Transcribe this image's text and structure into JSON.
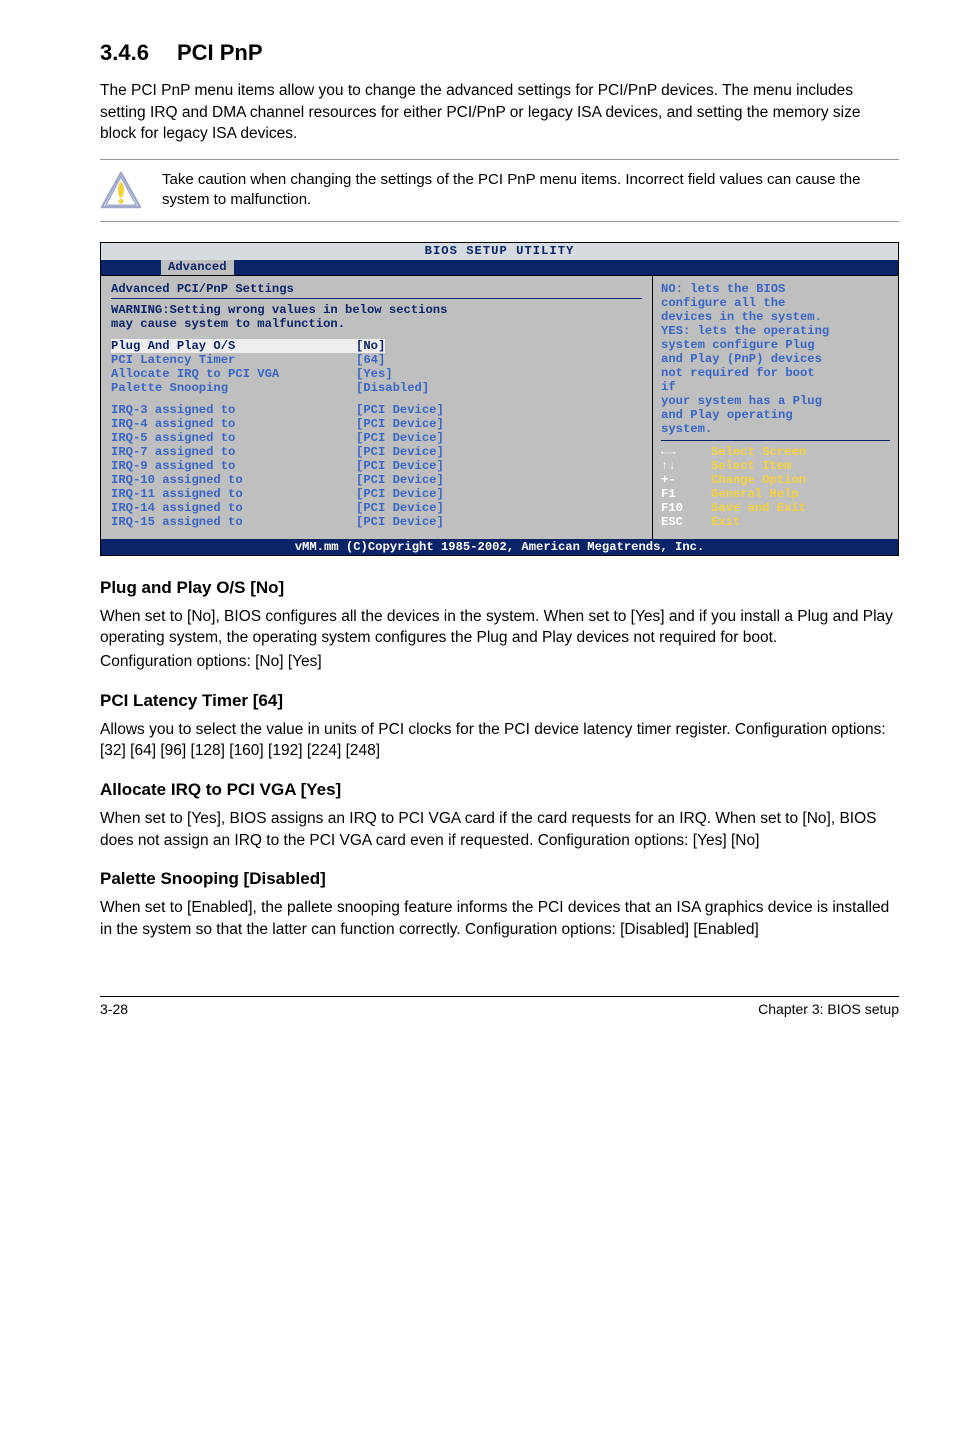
{
  "main": {
    "heading_num": "3.4.6",
    "heading_title": "PCI PnP",
    "intro": "The PCI PnP menu items allow you to change the advanced settings for PCI/PnP devices. The menu includes setting IRQ and DMA channel resources for either PCI/PnP or legacy ISA devices, and setting the memory size block for legacy ISA devices.",
    "caution": "Take caution when changing the settings of the PCI PnP menu items. Incorrect field values can cause the system to malfunction."
  },
  "bios": {
    "title": "BIOS SETUP UTILITY",
    "tab": "Advanced",
    "heading": "Advanced PCI/PnP Settings",
    "warning_label": "WARNING:",
    "warning_line1": "Setting wrong values in below sections",
    "warning_line2": "may cause system to malfunction.",
    "colors": {
      "screen_bg": "#bfbfbf",
      "frame_bg": "#0b2469",
      "heading_text": "#0b2469",
      "selected_bg": "#eeeeee",
      "selected_text": "#0b2469",
      "value_text": "#3866c6",
      "help_white": "#ffffff",
      "help_yellow": "#f5d23c"
    },
    "settings": [
      {
        "label": "Plug And Play O/S",
        "value": "[No]",
        "selected": true
      },
      {
        "label": "PCI Latency Timer",
        "value": "[64]",
        "selected": false
      },
      {
        "label": "Allocate IRQ to PCI VGA",
        "value": "[Yes]",
        "selected": false
      },
      {
        "label": "Palette Snooping",
        "value": "[Disabled]",
        "selected": false
      }
    ],
    "irq": [
      {
        "label": "IRQ-3 assigned to",
        "value": "[PCI Device]"
      },
      {
        "label": "IRQ-4 assigned to",
        "value": "[PCI Device]"
      },
      {
        "label": "IRQ-5 assigned to",
        "value": "[PCI Device]"
      },
      {
        "label": "IRQ-7 assigned to",
        "value": "[PCI Device]"
      },
      {
        "label": "IRQ-9 assigned to",
        "value": "[PCI Device]"
      },
      {
        "label": "IRQ-10 assigned to",
        "value": "[PCI Device]"
      },
      {
        "label": "IRQ-11 assigned to",
        "value": "[PCI Device]"
      },
      {
        "label": "IRQ-14 assigned to",
        "value": "[PCI Device]"
      },
      {
        "label": "IRQ-15 assigned to",
        "value": "[PCI Device]"
      }
    ],
    "help": {
      "lines": [
        "NO: lets the BIOS",
        "configure  all the",
        "devices in the system.",
        "YES: lets the operating",
        "system configure Plug",
        "and Play (PnP) devices",
        "not required for boot",
        "if",
        "your system has a Plug",
        "and Play operating",
        "system."
      ]
    },
    "nav": [
      {
        "key": "←→",
        "label": "Select Screen"
      },
      {
        "key": "↑↓",
        "label": "Select Item"
      },
      {
        "key": "+-",
        "label": "Change Option"
      },
      {
        "key": "F1",
        "label": "General Help"
      },
      {
        "key": "F10",
        "label": "Save and Exit"
      },
      {
        "key": "ESC",
        "label": "Exit"
      }
    ],
    "footer": "vMM.mm (C)Copyright 1985-2002, American Megatrends, Inc."
  },
  "subsections": [
    {
      "title": "Plug and Play O/S [No]",
      "body": "When set to [No], BIOS configures all the devices in the system. When set to [Yes] and if you install a Plug and Play operating system, the operating system configures the Plug and Play devices not required for boot.\nConfiguration options: [No] [Yes]"
    },
    {
      "title": "PCI Latency Timer [64]",
      "body": "Allows you to select the value in units of PCI clocks for the PCI device latency timer register. Configuration options: [32] [64] [96] [128] [160] [192] [224] [248]"
    },
    {
      "title": "Allocate IRQ to PCI VGA [Yes]",
      "body": "When set to [Yes], BIOS assigns an IRQ to PCI VGA card if the card requests for an IRQ. When set to [No], BIOS does not assign an IRQ to the PCI VGA card even if requested. Configuration options: [Yes] [No]"
    },
    {
      "title": "Palette Snooping [Disabled]",
      "body": "When set to [Enabled], the pallete snooping feature informs the PCI devices that an ISA graphics device is installed in the system so that the latter can function correctly. Configuration options: [Disabled] [Enabled]"
    }
  ],
  "footer": {
    "left": "3-28",
    "right": "Chapter 3: BIOS setup"
  }
}
